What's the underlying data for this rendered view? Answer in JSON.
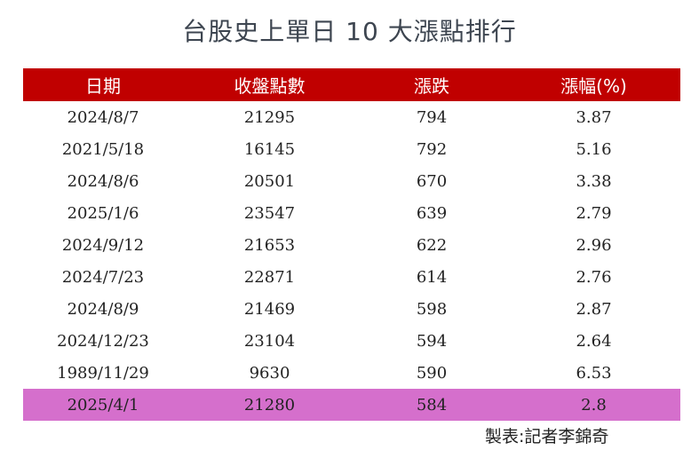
{
  "title": "台股史上單日 10 大漲點排行",
  "colors": {
    "header_bg": "#c00000",
    "highlight_bg": "#d56fcc",
    "title_color": "#3d4550"
  },
  "table": {
    "headers": [
      "日期",
      "收盤點數",
      "漲跌",
      "漲幅(%)"
    ],
    "rows": [
      [
        "2024/8/7",
        "21295",
        "794",
        "3.87"
      ],
      [
        "2021/5/18",
        "16145",
        "792",
        "5.16"
      ],
      [
        "2024/8/6",
        "20501",
        "670",
        "3.38"
      ],
      [
        "2025/1/6",
        "23547",
        "639",
        "2.79"
      ],
      [
        "2024/9/12",
        "21653",
        "622",
        "2.96"
      ],
      [
        "2024/7/23",
        "22871",
        "614",
        "2.76"
      ],
      [
        "2024/8/9",
        "21469",
        "598",
        "2.87"
      ],
      [
        "2024/12/23",
        "23104",
        "594",
        "2.64"
      ],
      [
        "1989/11/29",
        "9630",
        "590",
        "6.53"
      ],
      [
        "2025/4/1",
        "21280",
        "584",
        "2.8"
      ]
    ],
    "highlighted_row_index": 9
  },
  "credit": "製表:記者李錦奇"
}
